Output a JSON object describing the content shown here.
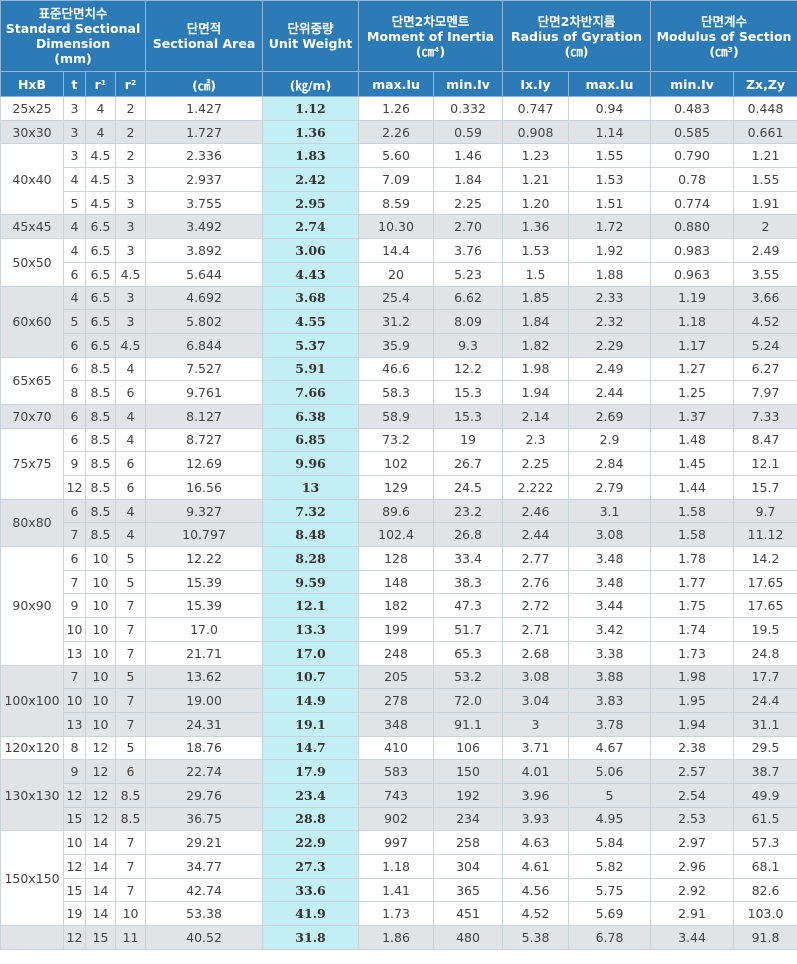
{
  "header": {
    "groups": [
      {
        "ko": "표준단면치수",
        "en": "Standard Sectional Dimension",
        "unit": "(mm)"
      },
      {
        "ko": "단면적",
        "en": "Sectional Area"
      },
      {
        "ko": "단위중량",
        "en": "Unit Weight"
      },
      {
        "ko": "단면2차모멘트",
        "en": "Moment of Inertia",
        "unit": "(㎝⁴)"
      },
      {
        "ko": "단면2차반지름",
        "en": "Radius of Gyration",
        "unit": "(㎝)"
      },
      {
        "ko": "단면계수",
        "en": "Modulus of Section",
        "unit": "(㎝³)"
      }
    ],
    "columns": [
      "HxB",
      "t",
      "r¹",
      "r²",
      "(㎠)",
      "(㎏/m)",
      "max.Iu",
      "min.Iv",
      "Ix.Iy",
      "max.Iu",
      "min.Iv",
      "Zx,Zy"
    ]
  },
  "table": {
    "groups": [
      {
        "size": "25x25",
        "rows": [
          [
            "3",
            "4",
            "2",
            "1.427",
            "1.12",
            "1.26",
            "0.332",
            "0.747",
            "0.94",
            "0.483",
            "0.448"
          ]
        ]
      },
      {
        "size": "30x30",
        "rows": [
          [
            "3",
            "4",
            "2",
            "1.727",
            "1.36",
            "2.26",
            "0.59",
            "0.908",
            "1.14",
            "0.585",
            "0.661"
          ]
        ]
      },
      {
        "size": "40x40",
        "rows": [
          [
            "3",
            "4.5",
            "2",
            "2.336",
            "1.83",
            "5.60",
            "1.46",
            "1.23",
            "1.55",
            "0.790",
            "1.21"
          ],
          [
            "4",
            "4.5",
            "3",
            "2.937",
            "2.42",
            "7.09",
            "1.84",
            "1.21",
            "1.53",
            "0.78",
            "1.55"
          ],
          [
            "5",
            "4.5",
            "3",
            "3.755",
            "2.95",
            "8.59",
            "2.25",
            "1.20",
            "1.51",
            "0.774",
            "1.91"
          ]
        ]
      },
      {
        "size": "45x45",
        "rows": [
          [
            "4",
            "6.5",
            "3",
            "3.492",
            "2.74",
            "10.30",
            "2.70",
            "1.36",
            "1.72",
            "0.880",
            "2"
          ]
        ]
      },
      {
        "size": "50x50",
        "rows": [
          [
            "4",
            "6.5",
            "3",
            "3.892",
            "3.06",
            "14.4",
            "3.76",
            "1.53",
            "1.92",
            "0.983",
            "2.49"
          ],
          [
            "6",
            "6.5",
            "4.5",
            "5.644",
            "4.43",
            "20",
            "5.23",
            "1.5",
            "1.88",
            "0.963",
            "3.55"
          ]
        ]
      },
      {
        "size": "60x60",
        "rows": [
          [
            "4",
            "6.5",
            "3",
            "4.692",
            "3.68",
            "25.4",
            "6.62",
            "1.85",
            "2.33",
            "1.19",
            "3.66"
          ],
          [
            "5",
            "6.5",
            "3",
            "5.802",
            "4.55",
            "31.2",
            "8.09",
            "1.84",
            "2.32",
            "1.18",
            "4.52"
          ],
          [
            "6",
            "6.5",
            "4.5",
            "6.844",
            "5.37",
            "35.9",
            "9.3",
            "1.82",
            "2.29",
            "1.17",
            "5.24"
          ]
        ]
      },
      {
        "size": "65x65",
        "rows": [
          [
            "6",
            "8.5",
            "4",
            "7.527",
            "5.91",
            "46.6",
            "12.2",
            "1.98",
            "2.49",
            "1.27",
            "6.27"
          ],
          [
            "8",
            "8.5",
            "6",
            "9.761",
            "7.66",
            "58.3",
            "15.3",
            "1.94",
            "2.44",
            "1.25",
            "7.97"
          ]
        ]
      },
      {
        "size": "70x70",
        "rows": [
          [
            "6",
            "8.5",
            "4",
            "8.127",
            "6.38",
            "58.9",
            "15.3",
            "2.14",
            "2.69",
            "1.37",
            "7.33"
          ]
        ]
      },
      {
        "size": "75x75",
        "rows": [
          [
            "6",
            "8.5",
            "4",
            "8.727",
            "6.85",
            "73.2",
            "19",
            "2.3",
            "2.9",
            "1.48",
            "8.47"
          ],
          [
            "9",
            "8.5",
            "6",
            "12.69",
            "9.96",
            "102",
            "26.7",
            "2.25",
            "2.84",
            "1.45",
            "12.1"
          ],
          [
            "12",
            "8.5",
            "6",
            "16.56",
            "13",
            "129",
            "24.5",
            "2.222",
            "2.79",
            "1.44",
            "15.7"
          ]
        ]
      },
      {
        "size": "80x80",
        "rows": [
          [
            "6",
            "8.5",
            "4",
            "9.327",
            "7.32",
            "89.6",
            "23.2",
            "2.46",
            "3.1",
            "1.58",
            "9.7"
          ],
          [
            "7",
            "8.5",
            "4",
            "10.797",
            "8.48",
            "102.4",
            "26.8",
            "2.44",
            "3.08",
            "1.58",
            "11.12"
          ]
        ]
      },
      {
        "size": "90x90",
        "rows": [
          [
            "6",
            "10",
            "5",
            "12.22",
            "8.28",
            "128",
            "33.4",
            "2.77",
            "3.48",
            "1.78",
            "14.2"
          ],
          [
            "7",
            "10",
            "5",
            "15.39",
            "9.59",
            "148",
            "38.3",
            "2.76",
            "3.48",
            "1.77",
            "17.65"
          ],
          [
            "9",
            "10",
            "7",
            "15.39",
            "12.1",
            "182",
            "47.3",
            "2.72",
            "3.44",
            "1.75",
            "17.65"
          ],
          [
            "10",
            "10",
            "7",
            "17.0",
            "13.3",
            "199",
            "51.7",
            "2.71",
            "3.42",
            "1.74",
            "19.5"
          ],
          [
            "13",
            "10",
            "7",
            "21.71",
            "17.0",
            "248",
            "65.3",
            "2.68",
            "3.38",
            "1.73",
            "24.8"
          ]
        ]
      },
      {
        "size": "100x100",
        "rows": [
          [
            "7",
            "10",
            "5",
            "13.62",
            "10.7",
            "205",
            "53.2",
            "3.08",
            "3.88",
            "1.98",
            "17.7"
          ],
          [
            "10",
            "10",
            "7",
            "19.00",
            "14.9",
            "278",
            "72.0",
            "3.04",
            "3.83",
            "1.95",
            "24.4"
          ],
          [
            "13",
            "10",
            "7",
            "24.31",
            "19.1",
            "348",
            "91.1",
            "3",
            "3.78",
            "1.94",
            "31.1"
          ]
        ]
      },
      {
        "size": "120x120",
        "rows": [
          [
            "8",
            "12",
            "5",
            "18.76",
            "14.7",
            "410",
            "106",
            "3.71",
            "4.67",
            "2.38",
            "29.5"
          ]
        ]
      },
      {
        "size": "130x130",
        "rows": [
          [
            "9",
            "12",
            "6",
            "22.74",
            "17.9",
            "583",
            "150",
            "4.01",
            "5.06",
            "2.57",
            "38.7"
          ],
          [
            "12",
            "12",
            "8.5",
            "29.76",
            "23.4",
            "743",
            "192",
            "3.96",
            "5",
            "2.54",
            "49.9"
          ],
          [
            "15",
            "12",
            "8.5",
            "36.75",
            "28.8",
            "902",
            "234",
            "3.93",
            "4.95",
            "2.53",
            "61.5"
          ]
        ]
      },
      {
        "size": "150x150",
        "rows": [
          [
            "10",
            "14",
            "7",
            "29.21",
            "22.9",
            "997",
            "258",
            "4.63",
            "5.84",
            "2.97",
            "57.3"
          ],
          [
            "12",
            "14",
            "7",
            "34.77",
            "27.3",
            "1.18",
            "304",
            "4.61",
            "5.82",
            "2.96",
            "68.1"
          ],
          [
            "15",
            "14",
            "7",
            "42.74",
            "33.6",
            "1.41",
            "365",
            "4.56",
            "5.75",
            "2.92",
            "82.6"
          ],
          [
            "19",
            "14",
            "10",
            "53.38",
            "41.9",
            "1.73",
            "451",
            "4.52",
            "5.69",
            "2.91",
            "103.0"
          ]
        ]
      },
      {
        "size": null,
        "rows": [
          [
            "12",
            "15",
            "11",
            "40.52",
            "31.8",
            "1.86",
            "480",
            "5.38",
            "6.78",
            "3.44",
            "91.8"
          ]
        ]
      }
    ]
  }
}
